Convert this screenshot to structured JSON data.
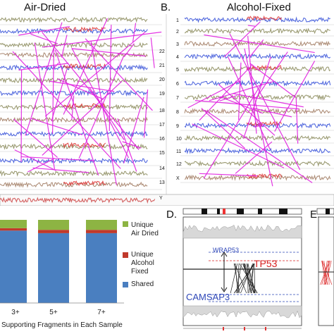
{
  "panelA": {
    "title": "Air-Dried"
  },
  "panelB": {
    "letter": "B.",
    "title": "Alcohol-Fixed",
    "chromosomes": [
      "1",
      "2",
      "3",
      "4",
      "5",
      "6",
      "7",
      "8",
      "9",
      "10",
      "11",
      "12",
      "X"
    ]
  },
  "panelA_right_labels": [
    "22",
    "21",
    "20",
    "19",
    "18",
    "17",
    "16",
    "15",
    "14",
    "13",
    "Y"
  ],
  "panelC": {
    "legend": [
      {
        "label_lines": [
          "Unique",
          "Air Dried"
        ],
        "color": "#8db443"
      },
      {
        "label_lines": [
          "Unique",
          "Alcohol Fixed"
        ],
        "color": "#c0392b"
      },
      {
        "label_lines": [
          "Shared"
        ],
        "color": "#4a7fc0"
      }
    ],
    "xlabel": "Supporting Fragments in Each Sample"
  },
  "panelD": {
    "letter": "D.",
    "gene_top": "TP53",
    "gene_wrap": "WRAP53",
    "gene_bottom": "CAMSAP3"
  },
  "panelE": {
    "letter": "E."
  },
  "chart_data": {
    "type": "bar",
    "categories": [
      "3+",
      "5+",
      "7+"
    ],
    "series": [
      {
        "name": "Shared",
        "values": [
          0.87,
          0.84,
          0.84
        ]
      },
      {
        "name": "Unique Alcohol Fixed",
        "values": [
          0.03,
          0.04,
          0.04
        ]
      },
      {
        "name": "Unique Air Dried",
        "values": [
          0.1,
          0.12,
          0.12
        ]
      }
    ],
    "stacked": true,
    "xlabel": "Supporting Fragments in Each Sample",
    "colors": {
      "Shared": "#4a7fc0",
      "Unique Alcohol Fixed": "#c0392b",
      "Unique Air Dried": "#8db443"
    }
  }
}
